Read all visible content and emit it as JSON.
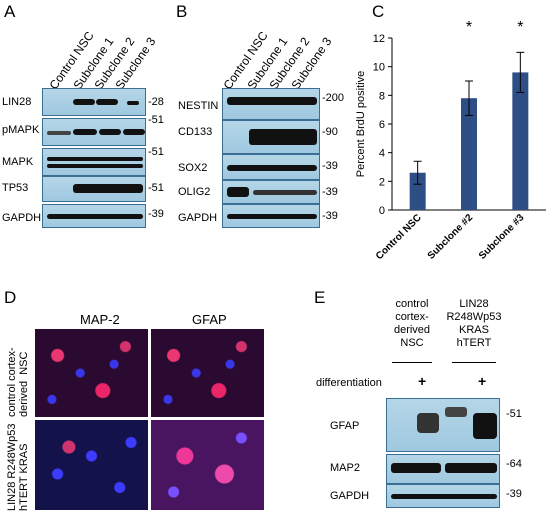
{
  "panels": {
    "A": {
      "letter": "A",
      "lanes": [
        "Control NSC",
        "Subclone  1",
        "Subclone 2",
        "Subclone 3"
      ],
      "rows": [
        {
          "label": "LIN28",
          "mw": "-28"
        },
        {
          "label": "pMAPK",
          "mw": "-51"
        },
        {
          "label": "MAPK",
          "mw": "-51"
        },
        {
          "label": "TP53",
          "mw": "-51"
        },
        {
          "label": "GAPDH",
          "mw": "-39"
        }
      ]
    },
    "B": {
      "letter": "B",
      "lanes": [
        "Control  NSC",
        "Subclone  1",
        "Subclone 2",
        "Subclone 3"
      ],
      "rows": [
        {
          "label": "NESTIN",
          "mw": "-200"
        },
        {
          "label": "CD133",
          "mw": "-90"
        },
        {
          "label": "SOX2",
          "mw": "-39"
        },
        {
          "label": "OLIG2",
          "mw": "-39"
        },
        {
          "label": "GAPDH",
          "mw": "-39"
        }
      ]
    },
    "C": {
      "letter": "C"
    },
    "D": {
      "letter": "D",
      "col_labels": [
        "MAP-2",
        "GFAP"
      ],
      "row_labels": [
        "control cortex-\nderived  NSC",
        "LIN28 R248Wp53\nhTERT KRAS"
      ]
    },
    "E": {
      "letter": "E",
      "col_headers": [
        "control\ncortex-\nderived\nNSC",
        "LIN28\nR248Wp53\nKRAS\nhTERT"
      ],
      "differentiation_label": "differentiation",
      "plus": "+",
      "rows": [
        {
          "label": "GFAP",
          "mw": "-51"
        },
        {
          "label": "MAP2",
          "mw": "-64"
        },
        {
          "label": "GAPDH",
          "mw": "-39"
        }
      ]
    }
  },
  "chart_data": {
    "type": "bar",
    "categories": [
      "Control NSC",
      "Subclone #2",
      "Subclone #3"
    ],
    "values": [
      2.6,
      7.8,
      9.6
    ],
    "errors": [
      0.8,
      1.2,
      1.4
    ],
    "significance": [
      "",
      "*",
      "*"
    ],
    "ylabel": "Percent BrdU positive",
    "ylim": [
      0,
      12
    ],
    "yticks": [
      0,
      2,
      4,
      6,
      8,
      10,
      12
    ],
    "bar_color": "#2e4f86"
  }
}
